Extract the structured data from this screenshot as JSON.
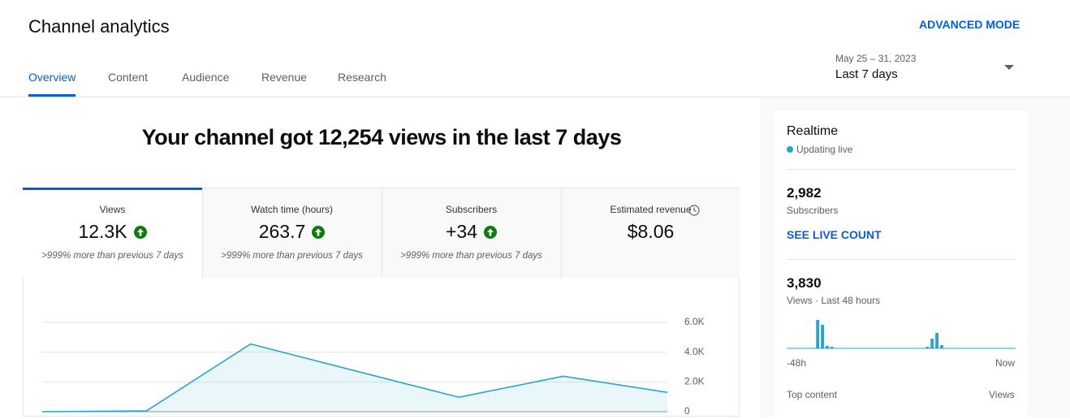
{
  "header": {
    "title": "Channel analytics",
    "advanced_mode": "ADVANCED MODE"
  },
  "tabs": [
    "Overview",
    "Content",
    "Audience",
    "Revenue",
    "Research"
  ],
  "date_range": {
    "range": "May 25 – 31, 2023",
    "label": "Last 7 days"
  },
  "headline": "Your channel got 12,254 views in the last 7 days",
  "metrics": [
    {
      "label": "Views",
      "value": "12.3K",
      "change": ">999% more than previous 7 days"
    },
    {
      "label": "Watch time (hours)",
      "value": "263.7",
      "change": ">999% more than previous 7 days"
    },
    {
      "label": "Subscribers",
      "value": "+34",
      "change": ">999% more than previous 7 days"
    },
    {
      "label": "Estimated revenue",
      "value": "$8.06"
    }
  ],
  "chart_data": {
    "type": "area",
    "color": "#2ba3cc",
    "values": [
      0,
      50,
      4550,
      2750,
      970,
      2380,
      1300
    ],
    "ylim": [
      0,
      6000
    ],
    "yticks": [
      0,
      {
        "value": 2000,
        "label": "2.0K"
      },
      {
        "value": 4000,
        "label": "4.0K"
      },
      {
        "value": 6000,
        "label": "6.0K"
      }
    ],
    "grid": true
  },
  "realtime": {
    "title": "Realtime",
    "status": "Updating live",
    "subscribers": {
      "value": "2,982",
      "label": "Subscribers"
    },
    "see_live": "SEE LIVE COUNT",
    "views": {
      "value": "3,830",
      "label": "Views · Last 48 hours"
    },
    "chart": {
      "type": "bar",
      "color": "#2ba3cc",
      "values": [
        0,
        0,
        0,
        0,
        0,
        0,
        35,
        29,
        3,
        2,
        0,
        0,
        0,
        0,
        0,
        0,
        0,
        0,
        0,
        0,
        0,
        0,
        0,
        0,
        0,
        0,
        0,
        0,
        0,
        2,
        12,
        19,
        4,
        0,
        0,
        0,
        0,
        0,
        0,
        0,
        0,
        0,
        0,
        0,
        0,
        0,
        0,
        0
      ],
      "x_start": "-48h",
      "x_end": "Now"
    },
    "top_content": "Top content",
    "views_col": "Views"
  }
}
